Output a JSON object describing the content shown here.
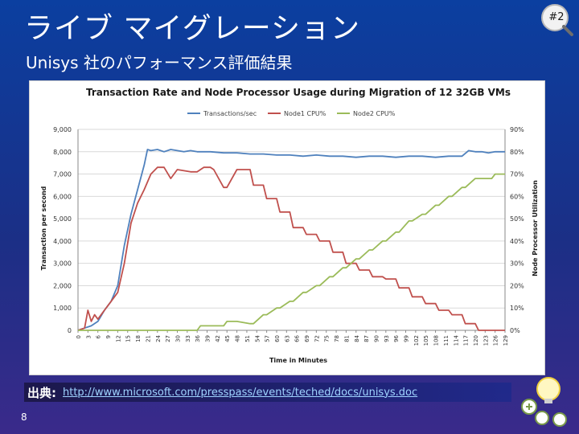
{
  "slide": {
    "title": "ライブ マイグレーション",
    "subtitle": "Unisys 社のパフォーマンス評価結果",
    "badge": "#2",
    "source_label": "出典:",
    "source_url": "http://www.microsoft.com/presspass/events/teched/docs/unisys.doc",
    "page_number": "8"
  },
  "colors": {
    "transactions": "#4f81bd",
    "node1": "#c0504d",
    "node2": "#9bbb59",
    "grid": "#d9d9d9"
  },
  "chart_data": {
    "type": "line",
    "title": "Transaction Rate and Node Processor Usage during Migration of 12 32GB VMs",
    "xlabel": "Time in Minutes",
    "ylabel": "Transaction per second",
    "y2label": "Node Processor Utilization",
    "ylim": [
      0,
      9000
    ],
    "y2lim": [
      0,
      90
    ],
    "xlim": [
      0,
      129
    ],
    "y_ticks": [
      "0",
      "1,000",
      "2,000",
      "3,000",
      "4,000",
      "5,000",
      "6,000",
      "7,000",
      "8,000",
      "9,000"
    ],
    "y2_ticks": [
      "0%",
      "10%",
      "20%",
      "30%",
      "40%",
      "50%",
      "60%",
      "70%",
      "80%",
      "90%"
    ],
    "x_ticks": [
      "0",
      "3",
      "6",
      "9",
      "12",
      "15",
      "18",
      "21",
      "24",
      "27",
      "30",
      "33",
      "36",
      "39",
      "42",
      "45",
      "48",
      "51",
      "54",
      "57",
      "60",
      "63",
      "66",
      "69",
      "72",
      "75",
      "78",
      "81",
      "84",
      "87",
      "90",
      "93",
      "96",
      "99",
      "102",
      "105",
      "108",
      "111",
      "114",
      "117",
      "120",
      "123",
      "126",
      "129"
    ],
    "legend": [
      "Transactions/sec",
      "Node1 CPU%",
      "Node2 CPU%"
    ],
    "legend_position": "top",
    "series": [
      {
        "name": "Transactions/sec",
        "axis": "left",
        "x": [
          0,
          2,
          4,
          6,
          8,
          10,
          12,
          14,
          16,
          18,
          20,
          21,
          22,
          24,
          26,
          28,
          30,
          32,
          34,
          36,
          40,
          44,
          48,
          52,
          56,
          60,
          64,
          68,
          72,
          76,
          80,
          84,
          88,
          92,
          96,
          100,
          104,
          108,
          112,
          116,
          118,
          120,
          122,
          124,
          126,
          128,
          129
        ],
        "y": [
          0,
          100,
          200,
          400,
          900,
          1300,
          2000,
          3800,
          5200,
          6300,
          7400,
          8100,
          8050,
          8100,
          8000,
          8100,
          8050,
          8000,
          8050,
          8000,
          8000,
          7950,
          7950,
          7900,
          7900,
          7850,
          7850,
          7800,
          7850,
          7800,
          7800,
          7750,
          7800,
          7800,
          7750,
          7800,
          7800,
          7750,
          7800,
          7800,
          8050,
          8000,
          8000,
          7950,
          8000,
          8000,
          8000
        ]
      },
      {
        "name": "Node1 CPU%",
        "axis": "right",
        "x": [
          0,
          2,
          3,
          4,
          5,
          6,
          8,
          10,
          12,
          14,
          16,
          18,
          20,
          22,
          24,
          26,
          28,
          30,
          34,
          36,
          38,
          40,
          41,
          44,
          45,
          48,
          52,
          53,
          56,
          57,
          60,
          61,
          64,
          65,
          68,
          69,
          72,
          73,
          76,
          77,
          80,
          81,
          84,
          85,
          88,
          89,
          92,
          93,
          96,
          97,
          100,
          101,
          104,
          105,
          108,
          109,
          112,
          113,
          116,
          117,
          120,
          121,
          124,
          125,
          126,
          127,
          129
        ],
        "y": [
          0,
          1,
          9,
          4,
          7,
          5,
          9,
          13,
          17,
          30,
          48,
          57,
          63,
          70,
          73,
          73,
          68,
          72,
          71,
          71,
          73,
          73,
          72,
          64,
          64,
          72,
          72,
          65,
          65,
          59,
          59,
          53,
          53,
          46,
          46,
          43,
          43,
          40,
          40,
          35,
          35,
          30,
          30,
          27,
          27,
          24,
          24,
          23,
          23,
          19,
          19,
          15,
          15,
          12,
          12,
          9,
          9,
          7,
          7,
          3,
          3,
          0,
          0,
          0,
          0,
          0,
          0
        ]
      },
      {
        "name": "Node2 CPU%",
        "axis": "right",
        "x": [
          0,
          12,
          13,
          16,
          18,
          20,
          21,
          22,
          24,
          26,
          36,
          37,
          40,
          44,
          45,
          48,
          52,
          53,
          56,
          57,
          60,
          61,
          64,
          65,
          68,
          69,
          72,
          73,
          76,
          77,
          80,
          81,
          84,
          85,
          88,
          89,
          92,
          93,
          96,
          97,
          100,
          101,
          104,
          105,
          108,
          109,
          112,
          113,
          116,
          117,
          120,
          121,
          124,
          125,
          126,
          127,
          129
        ],
        "y": [
          0,
          0,
          0,
          0,
          0,
          0,
          0,
          0,
          0,
          0,
          0,
          2,
          2,
          2,
          4,
          4,
          3,
          3,
          7,
          7,
          10,
          10,
          13,
          13,
          17,
          17,
          20,
          20,
          24,
          24,
          28,
          28,
          32,
          32,
          36,
          36,
          40,
          40,
          44,
          44,
          49,
          49,
          52,
          52,
          56,
          56,
          60,
          60,
          64,
          64,
          68,
          68,
          68,
          68,
          70,
          70,
          70
        ]
      }
    ]
  }
}
